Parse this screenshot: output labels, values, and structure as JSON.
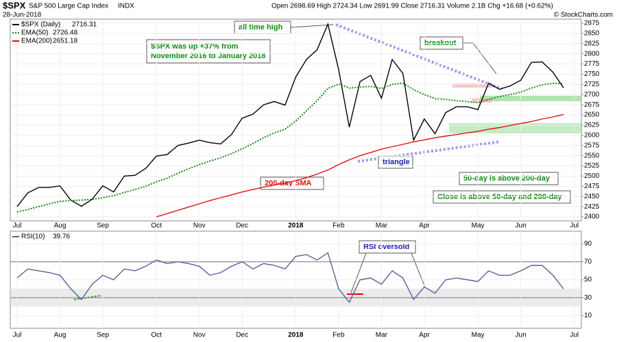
{
  "header": {
    "symbol": "$SPX",
    "name": "S&P 500 Large Cap Index",
    "exchange": "INDX",
    "date": "28-Jun-2018",
    "quote": "Open 2698.69  High 2724.34  Low 2691.99  Close 2716.31  Volume 2.1B  Chg +16.68 (+0.62%)",
    "watermark": "© StockCharts.com"
  },
  "chart_data": [
    {
      "type": "line",
      "annotations": [
        "all time high",
        "$SPX was up +37% from",
        "November 2016 to January 2018",
        "breakout",
        "triangle",
        "200-day SMA",
        "50-day is above 200-day",
        "Close is above 50-day and 200-day"
      ],
      "categories": [
        "Jul",
        null,
        null,
        null,
        "Aug",
        null,
        null,
        null,
        "Sep",
        null,
        null,
        null,
        null,
        "Oct",
        null,
        null,
        null,
        "Nov",
        null,
        null,
        null,
        "Dec",
        null,
        null,
        null,
        null,
        "2018",
        null,
        null,
        null,
        "Feb",
        null,
        null,
        null,
        "Mar",
        null,
        null,
        null,
        "Apr",
        null,
        null,
        null,
        null,
        "May",
        null,
        null,
        null,
        "Jun",
        null,
        null,
        null,
        null,
        "Jul"
      ],
      "ylim": [
        2390,
        2885
      ],
      "yticks": [
        2400,
        2425,
        2450,
        2475,
        2500,
        2525,
        2550,
        2575,
        2600,
        2625,
        2650,
        2675,
        2700,
        2725,
        2750,
        2775,
        2800,
        2825,
        2850,
        2875
      ],
      "grid": true,
      "series": [
        {
          "name": "$SPX (Daily)",
          "color": "#000000",
          "style": "solid",
          "values": [
            2425,
            2459,
            2472,
            2472,
            2476,
            2441,
            2426,
            2443,
            2476,
            2461,
            2500,
            2502,
            2519,
            2549,
            2553,
            2575,
            2581,
            2588,
            2582,
            2579,
            2602,
            2642,
            2652,
            2675,
            2683,
            2674,
            2743,
            2786,
            2810,
            2873,
            2762,
            2620,
            2732,
            2747,
            2691,
            2786,
            2752,
            2588,
            2640,
            2604,
            2656,
            2670,
            2670,
            2663,
            2728,
            2713,
            2721,
            2735,
            2779,
            2780,
            2755,
            2716.31,
            null
          ]
        },
        {
          "name": "EMA(50)",
          "color": "#138a13",
          "style": "dotted",
          "values": [
            2412,
            2418,
            2425,
            2432,
            2438,
            2440,
            2441,
            2443,
            2447,
            2452,
            2460,
            2467,
            2475,
            2486,
            2495,
            2507,
            2518,
            2528,
            2537,
            2545,
            2555,
            2567,
            2580,
            2594,
            2606,
            2615,
            2635,
            2660,
            2685,
            2715,
            2726,
            2716,
            2718,
            2720,
            2715,
            2725,
            2728,
            2712,
            2700,
            2690,
            2688,
            2685,
            2683,
            2680,
            2688,
            2695,
            2700,
            2706,
            2716,
            2724,
            2728,
            2726.48,
            null
          ]
        },
        {
          "name": "EMA(200)",
          "color": "#dd1111",
          "style": "solid",
          "values": [
            null,
            null,
            null,
            null,
            null,
            null,
            null,
            null,
            null,
            null,
            null,
            null,
            null,
            2400,
            2408,
            2416,
            2424,
            2432,
            2440,
            2447,
            2454,
            2461,
            2467,
            2473,
            2478,
            2483,
            2489,
            2496,
            2505,
            2515,
            2528,
            2540,
            2550,
            2558,
            2566,
            2572,
            2578,
            2584,
            2589,
            2594,
            2598,
            2602,
            2606,
            2610,
            2615,
            2619,
            2624,
            2629,
            2634,
            2640,
            2645,
            2651.18,
            null
          ]
        }
      ]
    },
    {
      "type": "line",
      "annotations": [
        "RSI oversold"
      ],
      "categories": [
        "Jul",
        null,
        null,
        null,
        "Aug",
        null,
        null,
        null,
        "Sep",
        null,
        null,
        null,
        null,
        "Oct",
        null,
        null,
        null,
        "Nov",
        null,
        null,
        null,
        "Dec",
        null,
        null,
        null,
        null,
        "2018",
        null,
        null,
        null,
        "Feb",
        null,
        null,
        null,
        "Mar",
        null,
        null,
        null,
        "Apr",
        null,
        null,
        null,
        null,
        "May",
        null,
        null,
        null,
        "Jun",
        null,
        null,
        null,
        null,
        "Jul"
      ],
      "ylim": [
        -4,
        104
      ],
      "yticks": [
        10,
        30,
        50,
        70,
        90
      ],
      "overbought": 70,
      "oversold": 30,
      "grid": true,
      "series": [
        {
          "name": "RSI(10)",
          "color": "#5a5f9a",
          "style": "solid",
          "values": [
            52,
            62,
            60,
            58,
            55,
            40,
            28,
            45,
            55,
            50,
            62,
            60,
            65,
            72,
            68,
            70,
            68,
            65,
            55,
            58,
            65,
            70,
            62,
            68,
            66,
            62,
            76,
            78,
            72,
            80,
            40,
            25,
            50,
            52,
            45,
            60,
            52,
            28,
            42,
            35,
            50,
            52,
            50,
            48,
            60,
            55,
            55,
            60,
            66,
            66,
            55,
            39.76,
            null
          ]
        }
      ]
    }
  ]
}
